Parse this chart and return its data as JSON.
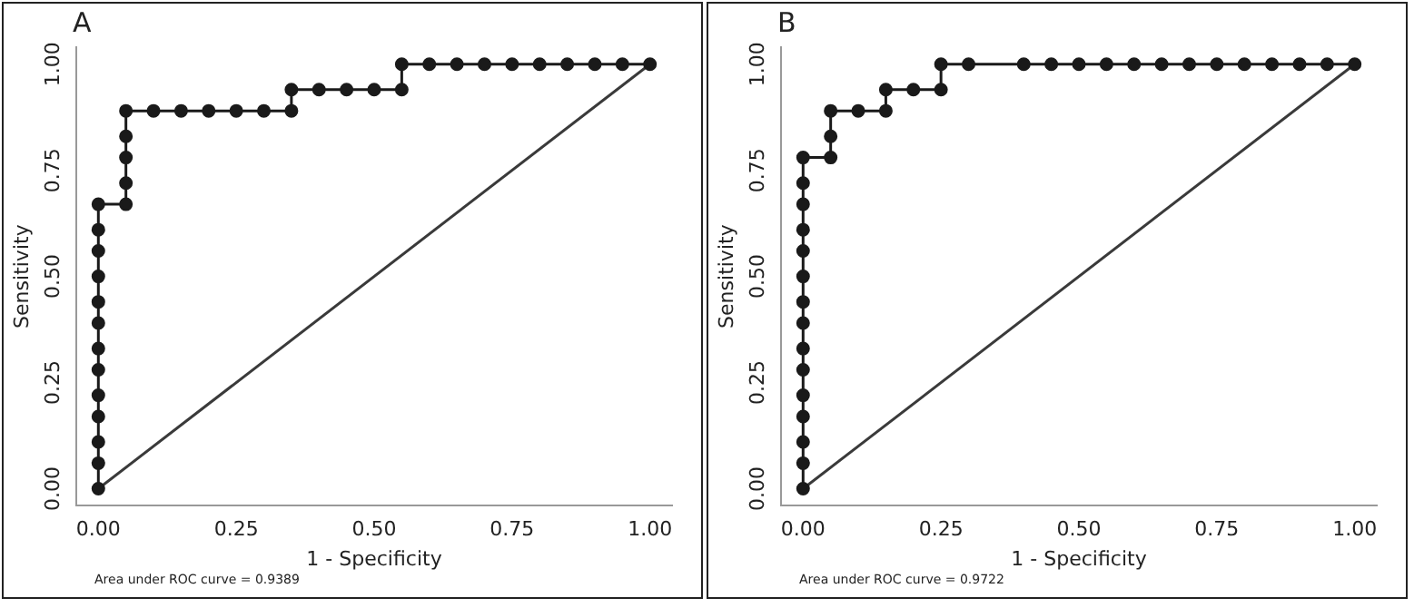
{
  "chart_data": [
    {
      "type": "line",
      "title": "A",
      "xlabel": "1 - Specificity",
      "ylabel": "Sensitivity",
      "annotations": [
        "Area under ROC curve = 0.9389"
      ],
      "xlim": [
        -0.04,
        1.04
      ],
      "ylim": [
        -0.04,
        1.04
      ],
      "grid": false,
      "legend": false,
      "xticks": [
        {
          "value": 0,
          "label": "0.00"
        },
        {
          "value": 0.25,
          "label": "0.25"
        },
        {
          "value": 0.5,
          "label": "0.50"
        },
        {
          "value": 0.75,
          "label": "0.75"
        },
        {
          "value": 1,
          "label": "1.00"
        }
      ],
      "yticks": [
        {
          "value": 0,
          "label": "0.00"
        },
        {
          "value": 0.25,
          "label": "0.25"
        },
        {
          "value": 0.5,
          "label": "0.50"
        },
        {
          "value": 0.75,
          "label": "0.75"
        },
        {
          "value": 1,
          "label": "1.00"
        }
      ],
      "series": [
        {
          "color": "#1a1a1a",
          "marker": "circle",
          "x": [
            0,
            0,
            0,
            0,
            0,
            0,
            0,
            0,
            0,
            0,
            0,
            0,
            0,
            0.05,
            0.05,
            0.05,
            0.05,
            0.05,
            0.1,
            0.15,
            0.2,
            0.25,
            0.3,
            0.35,
            0.35,
            0.4,
            0.45,
            0.5,
            0.55,
            0.55,
            0.6,
            0.65,
            0.7,
            0.75,
            0.8,
            0.85,
            0.9,
            0.95,
            1
          ],
          "values": [
            0,
            0.06,
            0.11,
            0.17,
            0.22,
            0.28,
            0.33,
            0.39,
            0.44,
            0.5,
            0.56,
            0.61,
            0.67,
            0.67,
            0.72,
            0.78,
            0.83,
            0.89,
            0.89,
            0.89,
            0.89,
            0.89,
            0.89,
            0.89,
            0.94,
            0.94,
            0.94,
            0.94,
            0.94,
            1,
            1,
            1,
            1,
            1,
            1,
            1,
            1,
            1,
            1
          ]
        },
        {
          "color": "#3a3a3a",
          "marker": "none",
          "x": [
            0,
            1
          ],
          "values": [
            0,
            1
          ]
        }
      ]
    },
    {
      "type": "line",
      "title": "B",
      "xlabel": "1 - Specificity",
      "ylabel": "Sensitivity",
      "annotations": [
        "Area under ROC curve = 0.9722"
      ],
      "xlim": [
        -0.04,
        1.04
      ],
      "ylim": [
        -0.04,
        1.04
      ],
      "grid": false,
      "legend": false,
      "xticks": [
        {
          "value": 0,
          "label": "0.00"
        },
        {
          "value": 0.25,
          "label": "0.25"
        },
        {
          "value": 0.5,
          "label": "0.50"
        },
        {
          "value": 0.75,
          "label": "0.75"
        },
        {
          "value": 1,
          "label": "1.00"
        }
      ],
      "yticks": [
        {
          "value": 0,
          "label": "0.00"
        },
        {
          "value": 0.25,
          "label": "0.25"
        },
        {
          "value": 0.5,
          "label": "0.50"
        },
        {
          "value": 0.75,
          "label": "0.75"
        },
        {
          "value": 1,
          "label": "1.00"
        }
      ],
      "series": [
        {
          "color": "#1a1a1a",
          "marker": "circle",
          "x": [
            0,
            0,
            0,
            0,
            0,
            0,
            0,
            0,
            0,
            0,
            0,
            0,
            0,
            0,
            0,
            0.05,
            0.05,
            0.05,
            0.1,
            0.15,
            0.15,
            0.2,
            0.25,
            0.25,
            0.3,
            0.4,
            0.45,
            0.5,
            0.55,
            0.6,
            0.65,
            0.7,
            0.75,
            0.8,
            0.85,
            0.9,
            0.95,
            1
          ],
          "values": [
            0,
            0.06,
            0.11,
            0.17,
            0.22,
            0.28,
            0.33,
            0.39,
            0.44,
            0.5,
            0.56,
            0.61,
            0.67,
            0.72,
            0.78,
            0.78,
            0.83,
            0.89,
            0.89,
            0.89,
            0.94,
            0.94,
            0.94,
            1,
            1,
            1,
            1,
            1,
            1,
            1,
            1,
            1,
            1,
            1,
            1,
            1,
            1,
            1
          ]
        },
        {
          "color": "#3a3a3a",
          "marker": "none",
          "x": [
            0,
            1
          ],
          "values": [
            0,
            1
          ]
        }
      ]
    }
  ]
}
